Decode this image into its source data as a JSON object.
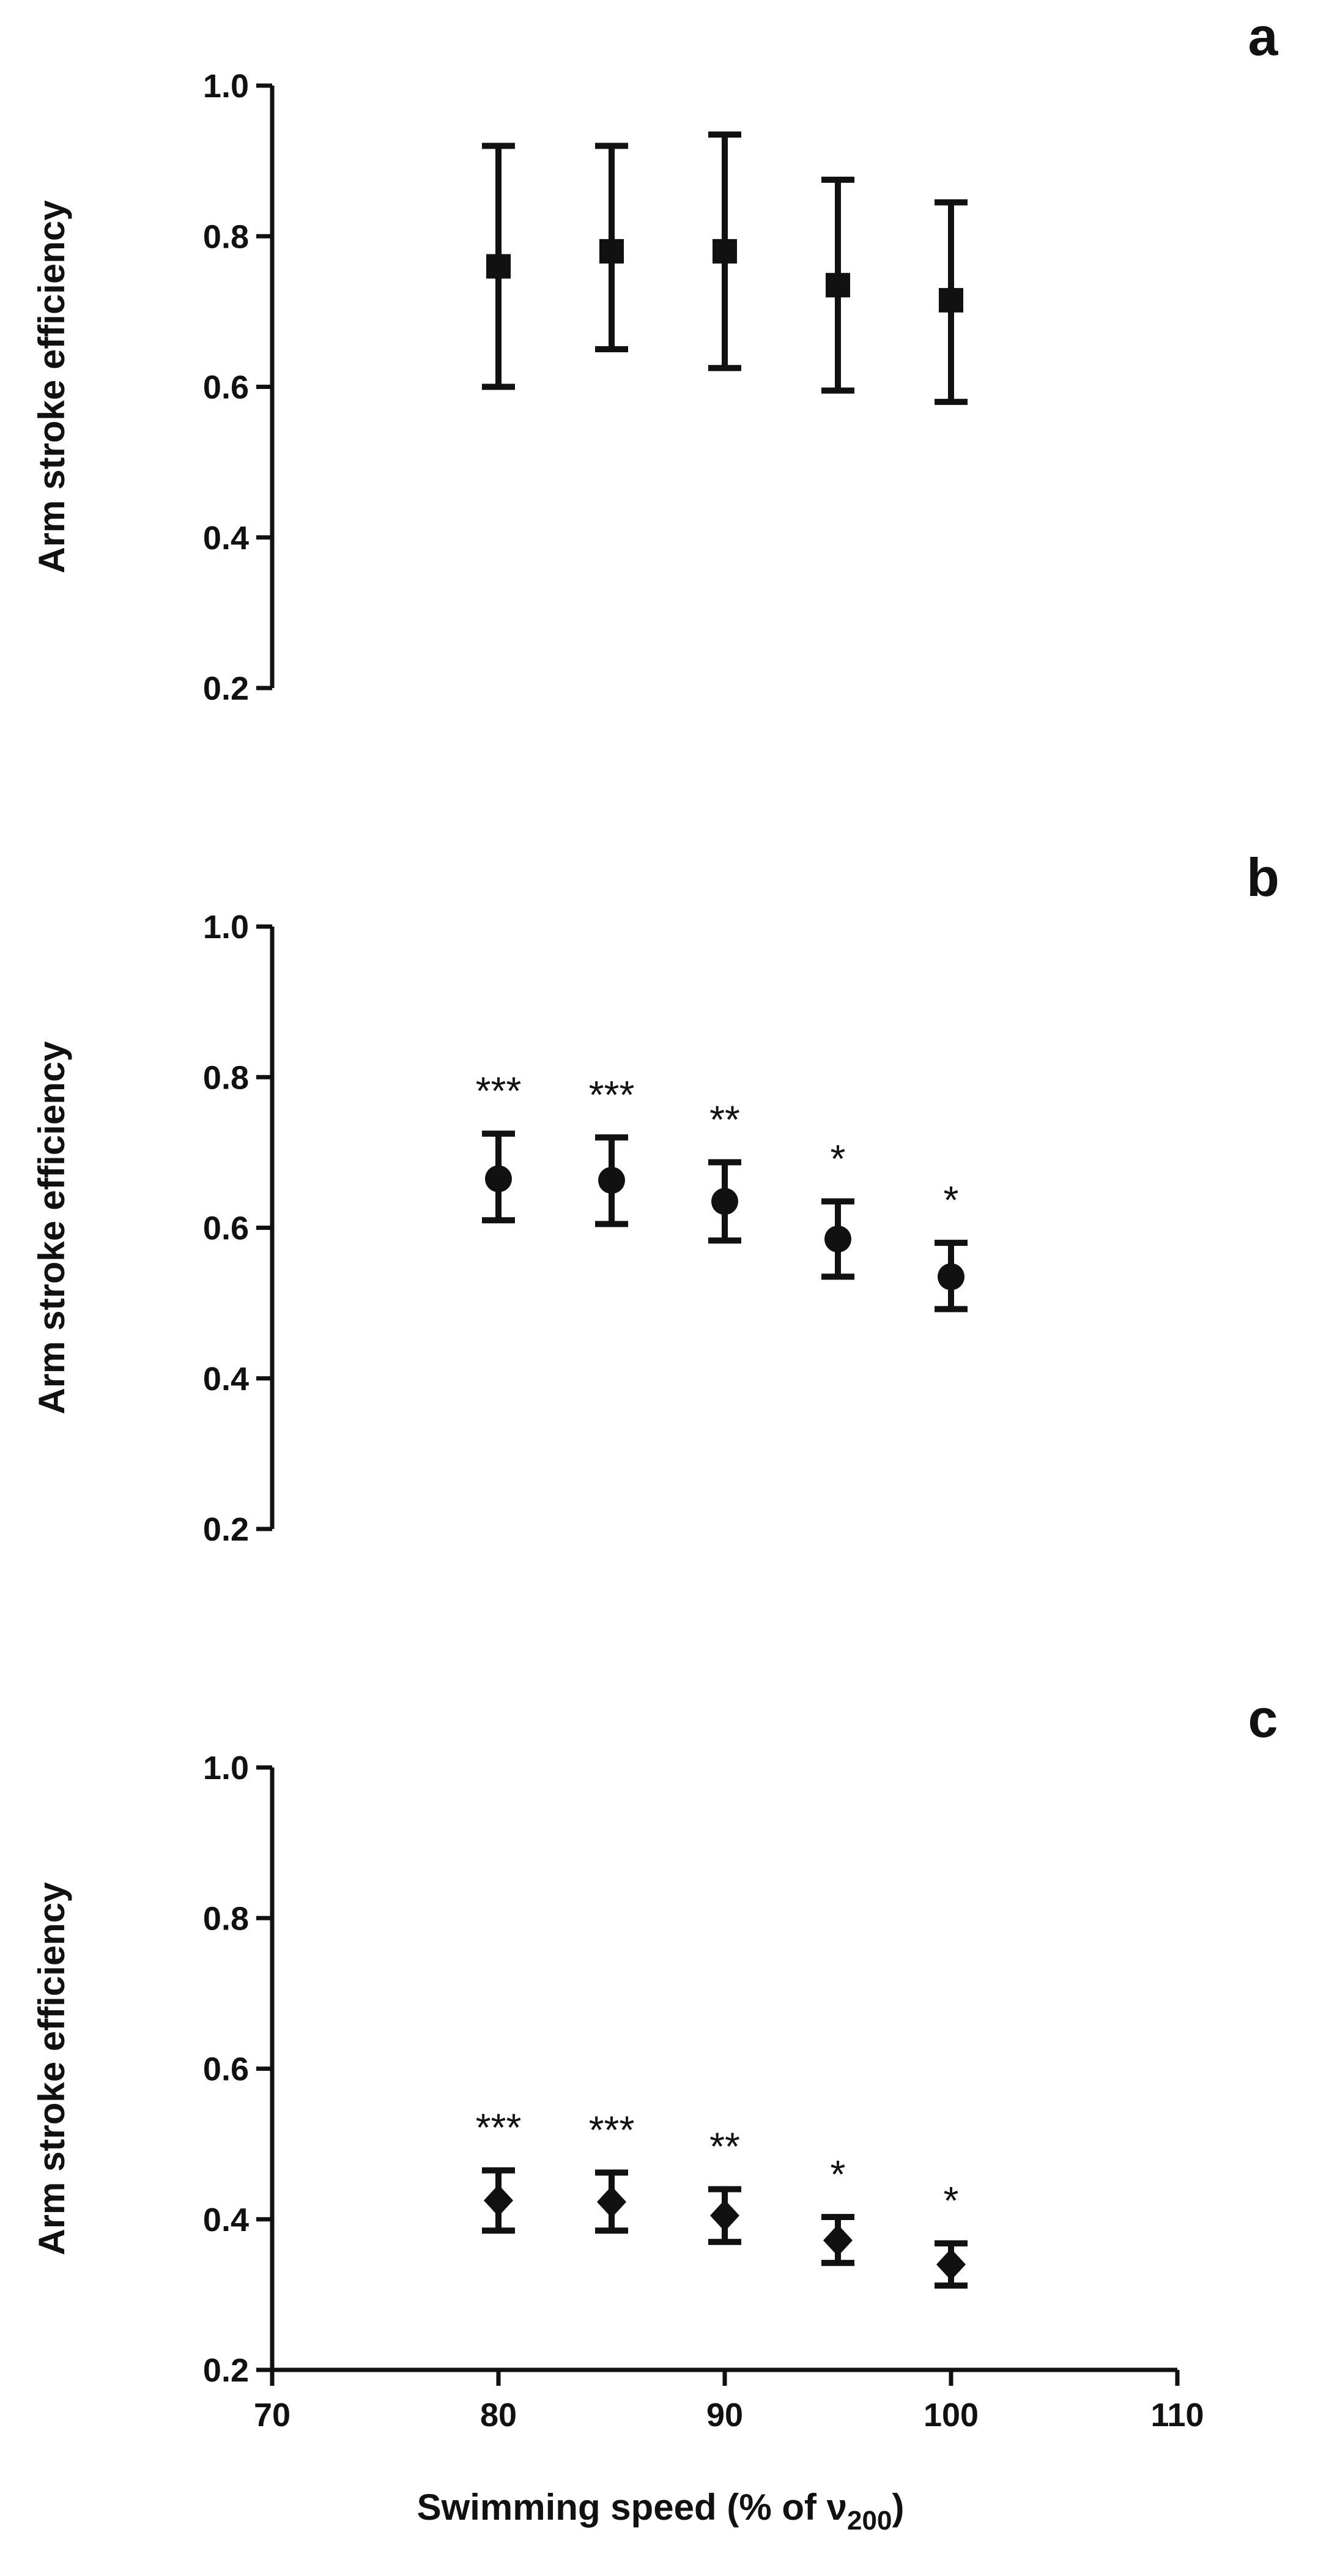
{
  "figure": {
    "xlabel_main": "Swimming speed  (% of ",
    "xlabel_symbol": "ν",
    "xlabel_sub": "200",
    "xlabel_end": ")"
  },
  "chart_data": [
    {
      "type": "scatter",
      "panel_label": "a",
      "marker": "square",
      "xlabel": "",
      "ylabel": "Arm stroke efficiency",
      "xlim": [
        70,
        110
      ],
      "ylim": [
        0.2,
        1.0
      ],
      "yticks": [
        "0.2",
        "0.4",
        "0.6",
        "0.8",
        "1.0"
      ],
      "x_axis_visible": false,
      "points": [
        {
          "x": 80,
          "y": 0.76,
          "err_low": 0.6,
          "err_high": 0.92,
          "annotation": ""
        },
        {
          "x": 85,
          "y": 0.78,
          "err_low": 0.65,
          "err_high": 0.92,
          "annotation": ""
        },
        {
          "x": 90,
          "y": 0.78,
          "err_low": 0.625,
          "err_high": 0.935,
          "annotation": ""
        },
        {
          "x": 95,
          "y": 0.735,
          "err_low": 0.595,
          "err_high": 0.875,
          "annotation": ""
        },
        {
          "x": 100,
          "y": 0.715,
          "err_low": 0.58,
          "err_high": 0.845,
          "annotation": ""
        }
      ]
    },
    {
      "type": "scatter",
      "panel_label": "b",
      "marker": "circle",
      "xlabel": "",
      "ylabel": "Arm stroke efficiency",
      "xlim": [
        70,
        110
      ],
      "ylim": [
        0.2,
        1.0
      ],
      "yticks": [
        "0.2",
        "0.4",
        "0.6",
        "0.8",
        "1.0"
      ],
      "x_axis_visible": false,
      "points": [
        {
          "x": 80,
          "y": 0.665,
          "err_low": 0.61,
          "err_high": 0.725,
          "annotation": "***"
        },
        {
          "x": 85,
          "y": 0.663,
          "err_low": 0.605,
          "err_high": 0.72,
          "annotation": "***"
        },
        {
          "x": 90,
          "y": 0.635,
          "err_low": 0.583,
          "err_high": 0.687,
          "annotation": "**"
        },
        {
          "x": 95,
          "y": 0.585,
          "err_low": 0.535,
          "err_high": 0.635,
          "annotation": "*"
        },
        {
          "x": 100,
          "y": 0.535,
          "err_low": 0.492,
          "err_high": 0.58,
          "annotation": "*"
        }
      ]
    },
    {
      "type": "scatter",
      "panel_label": "c",
      "marker": "diamond",
      "xlabel": "",
      "ylabel": "Arm stroke efficiency",
      "xlim": [
        70,
        110
      ],
      "ylim": [
        0.2,
        1.0
      ],
      "yticks": [
        "0.2",
        "0.4",
        "0.6",
        "0.8",
        "1.0"
      ],
      "x_axis_visible": true,
      "xticks": [
        "70",
        "80",
        "90",
        "100",
        "110"
      ],
      "points": [
        {
          "x": 80,
          "y": 0.425,
          "err_low": 0.385,
          "err_high": 0.465,
          "annotation": "***"
        },
        {
          "x": 85,
          "y": 0.423,
          "err_low": 0.385,
          "err_high": 0.462,
          "annotation": "***"
        },
        {
          "x": 90,
          "y": 0.405,
          "err_low": 0.37,
          "err_high": 0.44,
          "annotation": "**"
        },
        {
          "x": 95,
          "y": 0.372,
          "err_low": 0.342,
          "err_high": 0.403,
          "annotation": "*"
        },
        {
          "x": 100,
          "y": 0.34,
          "err_low": 0.312,
          "err_high": 0.368,
          "annotation": "*"
        }
      ]
    }
  ]
}
